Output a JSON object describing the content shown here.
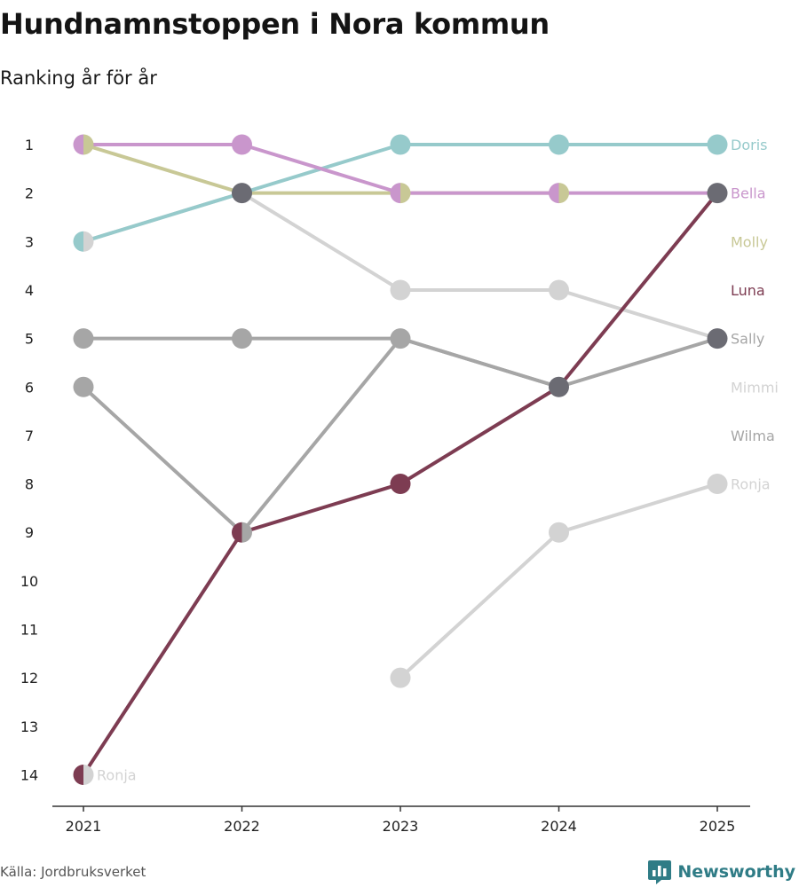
{
  "header": {
    "title": "Hundnamnstoppen i Nora kommun",
    "subtitle": "Ranking år för år"
  },
  "footer": {
    "source": "Källa: Jordbruksverket",
    "brand": "Newsworthy"
  },
  "colors": {
    "Doris": "#96cacb",
    "Bella": "#c996cc",
    "Molly": "#c8c896",
    "Luna": "#7d3c52",
    "Sally": "#a6a6a6",
    "Mimmi": "#d3d3d3",
    "Wilma": "#a6a6a6",
    "Ronja": "#d3d3d3",
    "merged": "#6b6b73",
    "axis": "#333333",
    "brand": "#2f7c86"
  },
  "chart_data": {
    "type": "line",
    "title": "Hundnamnstoppen i Nora kommun",
    "subtitle": "Ranking år för år",
    "x": [
      2021,
      2022,
      2023,
      2024,
      2025
    ],
    "xlabel": "",
    "ylabel": "",
    "y_reversed": true,
    "ylim": [
      1,
      14
    ],
    "y_ticks": [
      1,
      2,
      3,
      4,
      5,
      6,
      7,
      8,
      9,
      10,
      11,
      12,
      13,
      14
    ],
    "series": [
      {
        "name": "Doris",
        "values": [
          3,
          2,
          1,
          1,
          1
        ]
      },
      {
        "name": "Bella",
        "values": [
          1,
          1,
          2,
          2,
          2
        ]
      },
      {
        "name": "Molly",
        "values": [
          1,
          2,
          2,
          2,
          null
        ]
      },
      {
        "name": "Luna",
        "values": [
          14,
          9,
          8,
          6,
          2
        ]
      },
      {
        "name": "Sally",
        "values": [
          5,
          5,
          5,
          6,
          5
        ]
      },
      {
        "name": "Mimmi",
        "values": [
          3,
          2,
          4,
          4,
          5
        ]
      },
      {
        "name": "Wilma",
        "values": [
          6,
          9,
          5,
          6,
          null
        ]
      },
      {
        "name": "Ronja",
        "values": [
          14,
          null,
          12,
          9,
          8
        ]
      }
    ],
    "end_labels": [
      {
        "name": "Doris",
        "rank": 1
      },
      {
        "name": "Bella",
        "rank": 2
      },
      {
        "name": "Molly",
        "rank": 3
      },
      {
        "name": "Luna",
        "rank": 4
      },
      {
        "name": "Sally",
        "rank": 5
      },
      {
        "name": "Mimmi",
        "rank": 6
      },
      {
        "name": "Wilma",
        "rank": 7
      },
      {
        "name": "Ronja",
        "rank": 8
      }
    ],
    "start_labels": [
      {
        "name": "Ronja",
        "rank": 14,
        "year": 2021
      }
    ],
    "points": [
      {
        "year": 2021,
        "rank": 1,
        "fill": [
          "Bella",
          "Molly"
        ]
      },
      {
        "year": 2021,
        "rank": 3,
        "fill": [
          "Doris",
          "Mimmi"
        ]
      },
      {
        "year": 2021,
        "rank": 5,
        "fill": [
          "Sally"
        ]
      },
      {
        "year": 2021,
        "rank": 6,
        "fill": [
          "Wilma"
        ]
      },
      {
        "year": 2021,
        "rank": 14,
        "fill": [
          "Luna",
          "Ronja"
        ]
      },
      {
        "year": 2022,
        "rank": 1,
        "fill": [
          "Bella"
        ]
      },
      {
        "year": 2022,
        "rank": 2,
        "fill": [
          "merged"
        ]
      },
      {
        "year": 2022,
        "rank": 5,
        "fill": [
          "Sally"
        ]
      },
      {
        "year": 2022,
        "rank": 9,
        "fill": [
          "Luna",
          "Wilma"
        ]
      },
      {
        "year": 2023,
        "rank": 1,
        "fill": [
          "Doris"
        ]
      },
      {
        "year": 2023,
        "rank": 2,
        "fill": [
          "Bella",
          "Molly"
        ]
      },
      {
        "year": 2023,
        "rank": 4,
        "fill": [
          "Mimmi"
        ]
      },
      {
        "year": 2023,
        "rank": 5,
        "fill": [
          "Sally"
        ]
      },
      {
        "year": 2023,
        "rank": 8,
        "fill": [
          "Luna"
        ]
      },
      {
        "year": 2023,
        "rank": 12,
        "fill": [
          "Ronja"
        ]
      },
      {
        "year": 2024,
        "rank": 1,
        "fill": [
          "Doris"
        ]
      },
      {
        "year": 2024,
        "rank": 2,
        "fill": [
          "Bella",
          "Molly"
        ]
      },
      {
        "year": 2024,
        "rank": 4,
        "fill": [
          "Mimmi"
        ]
      },
      {
        "year": 2024,
        "rank": 6,
        "fill": [
          "merged"
        ]
      },
      {
        "year": 2024,
        "rank": 9,
        "fill": [
          "Ronja"
        ]
      },
      {
        "year": 2025,
        "rank": 1,
        "fill": [
          "Doris"
        ]
      },
      {
        "year": 2025,
        "rank": 2,
        "fill": [
          "merged"
        ]
      },
      {
        "year": 2025,
        "rank": 5,
        "fill": [
          "merged"
        ]
      },
      {
        "year": 2025,
        "rank": 8,
        "fill": [
          "Ronja"
        ]
      }
    ]
  }
}
